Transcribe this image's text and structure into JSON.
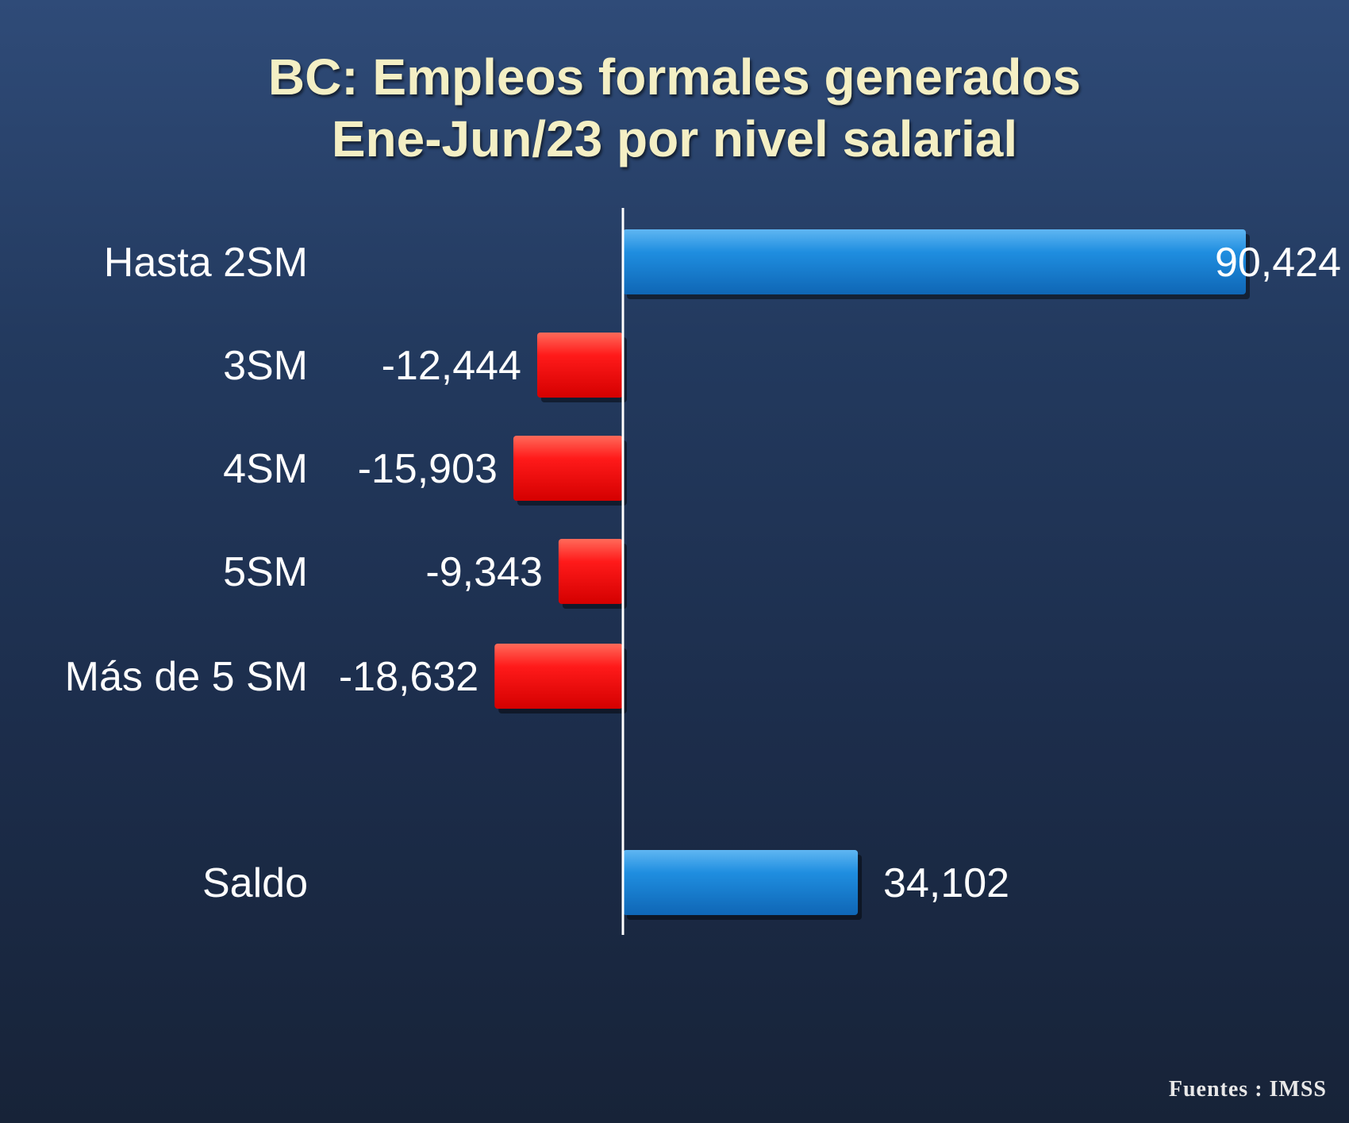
{
  "title": {
    "line1": "BC: Empleos formales generados",
    "line2": "Ene-Jun/23  por nivel salarial"
  },
  "source": "Fuentes : IMSS",
  "colors": {
    "positive": "#1a86dc",
    "negative": "#ff1a1a",
    "label": "#ffffff",
    "title": "#f4efc4"
  },
  "chart_data": {
    "type": "bar",
    "orientation": "horizontal",
    "title": "BC: Empleos formales generados Ene-Jun/23  por nivel salarial",
    "categories": [
      "Hasta 2SM",
      "3SM",
      "4SM",
      "5SM",
      "Más de 5 SM",
      "Saldo"
    ],
    "values": [
      90424,
      -12444,
      -15903,
      -9343,
      -18632,
      34102
    ],
    "value_labels": [
      "90,424",
      "-12,444",
      "-15,903",
      "-9,343",
      "-18,632",
      "34,102"
    ],
    "xlabel": "",
    "ylabel": "",
    "grid": false,
    "legend": "none"
  }
}
